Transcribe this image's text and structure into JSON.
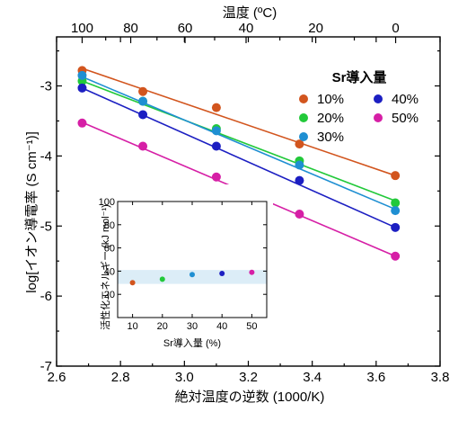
{
  "chart_data": [
    {
      "type": "scatter",
      "title": "",
      "xlabel": "絶対温度の逆数 (1000/K)",
      "ylabel": "log[イオン導電率 (S cm⁻¹)]",
      "x2label": "温度 (ºC)",
      "xlim": [
        2.6,
        3.8
      ],
      "ylim": [
        -7,
        -2.3
      ],
      "xticks": [
        "2.6",
        "2.8",
        "3.0",
        "3.2",
        "3.4",
        "3.6",
        "3.8"
      ],
      "yticks": [
        "-3",
        "-4",
        "-5",
        "-6",
        "-7"
      ],
      "x2ticks": [
        {
          "label": "100",
          "x": 2.68
        },
        {
          "label": "80",
          "x": 2.832
        },
        {
          "label": "60",
          "x": 3.002
        },
        {
          "label": "40",
          "x": 3.193
        },
        {
          "label": "20",
          "x": 3.411
        },
        {
          "label": "0",
          "x": 3.661
        }
      ],
      "legend_title": "Sr導入量",
      "legend_position": "top-right",
      "series": [
        {
          "name": "10%",
          "color": "#d2551e",
          "x": [
            2.68,
            2.87,
            3.1,
            3.36,
            3.66
          ],
          "y": [
            -2.78,
            -3.08,
            -3.31,
            -3.83,
            -4.28
          ],
          "fit": [
            [
              2.68,
              -2.75
            ],
            [
              3.66,
              -4.28
            ]
          ]
        },
        {
          "name": "20%",
          "color": "#22c93a",
          "x": [
            2.68,
            2.87,
            3.1,
            3.36,
            3.66
          ],
          "y": [
            -2.93,
            -3.22,
            -3.61,
            -4.07,
            -4.67
          ],
          "fit": [
            [
              2.68,
              -2.93
            ],
            [
              3.66,
              -4.64
            ]
          ]
        },
        {
          "name": "30%",
          "color": "#1f8fd2",
          "x": [
            2.68,
            2.87,
            3.1,
            3.36,
            3.66
          ],
          "y": [
            -2.85,
            -3.22,
            -3.64,
            -4.13,
            -4.78
          ],
          "fit": [
            [
              2.68,
              -2.87
            ],
            [
              3.66,
              -4.76
            ]
          ]
        },
        {
          "name": "40%",
          "color": "#1c1fc2",
          "x": [
            2.68,
            2.87,
            3.1,
            3.36,
            3.66
          ],
          "y": [
            -3.03,
            -3.41,
            -3.86,
            -4.35,
            -5.02
          ],
          "fit": [
            [
              2.68,
              -3.03
            ],
            [
              3.66,
              -5.02
            ]
          ]
        },
        {
          "name": "50%",
          "color": "#d61fa6",
          "x": [
            2.68,
            2.87,
            3.1,
            3.36,
            3.66
          ],
          "y": [
            -3.53,
            -3.86,
            -4.3,
            -4.83,
            -5.43
          ],
          "fit": [
            [
              2.68,
              -3.52
            ],
            [
              3.66,
              -5.43
            ]
          ]
        }
      ]
    },
    {
      "type": "scatter",
      "title": "",
      "xlabel": "Sr導入量 (%)",
      "ylabel": "活性化エネルギー (kJ mol⁻¹)",
      "xlim": [
        5,
        55
      ],
      "ylim": [
        0,
        100
      ],
      "xticks": [
        "10",
        "20",
        "30",
        "40",
        "50"
      ],
      "yticks": [
        "0",
        "20",
        "40",
        "60",
        "80",
        "100"
      ],
      "band": [
        29,
        41
      ],
      "band_color": "#dcedf7",
      "points": [
        {
          "x": 10,
          "y": 30,
          "color": "#d2551e"
        },
        {
          "x": 20,
          "y": 33,
          "color": "#22c93a"
        },
        {
          "x": 30,
          "y": 37,
          "color": "#1f8fd2"
        },
        {
          "x": 40,
          "y": 38,
          "color": "#1c1fc2"
        },
        {
          "x": 50,
          "y": 39,
          "color": "#d61fa6"
        }
      ]
    }
  ]
}
